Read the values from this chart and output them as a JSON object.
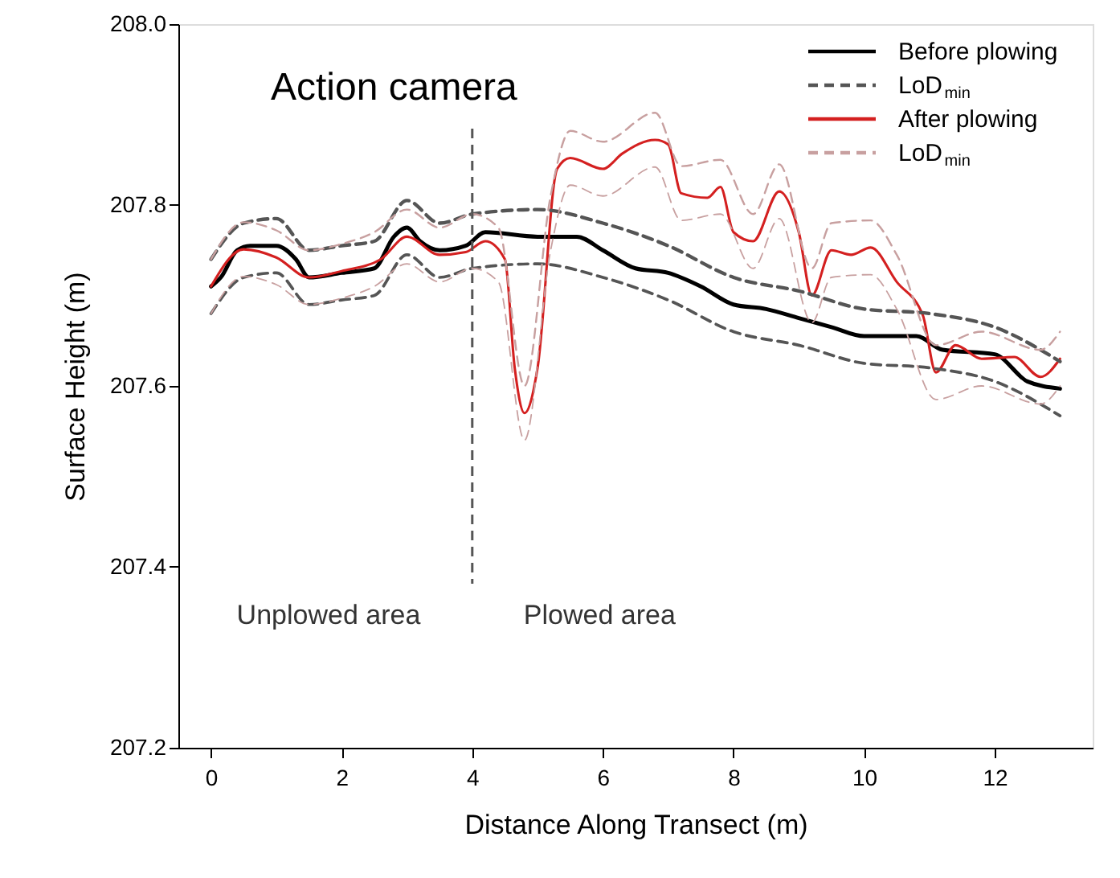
{
  "chart_data": {
    "type": "line",
    "xlabel": "Distance Along Transect (m)",
    "ylabel": "Surface Height (m)",
    "xlim": [
      -0.5,
      13.5
    ],
    "xticks": [
      0,
      2,
      4,
      6,
      8,
      10,
      12
    ],
    "ylim": [
      207.2,
      208.0
    ],
    "yticks": [
      {
        "value": 207.2,
        "label": "207.2"
      },
      {
        "value": 207.4,
        "label": "207.4"
      },
      {
        "value": 207.6,
        "label": "207.6"
      },
      {
        "value": 207.8,
        "label": "207.8"
      },
      {
        "value": 208.0,
        "label": "208.0"
      }
    ],
    "grid": false,
    "legend": "top right",
    "marker": "none",
    "series": [
      {
        "name": "Before plowing",
        "color": "#000000",
        "line_style": "solid",
        "x": [
          0,
          0.15,
          0.4,
          0.6,
          1.0,
          1.3,
          1.5,
          2.0,
          2.5,
          2.8,
          3.0,
          3.2,
          3.5,
          3.9,
          4.2,
          5.0,
          5.6,
          6.0,
          6.5,
          7.0,
          7.5,
          8.0,
          8.5,
          9.0,
          9.5,
          10.0,
          10.8,
          11.2,
          12.0,
          12.5,
          13.0
        ],
        "values": [
          207.71,
          207.72,
          207.75,
          207.755,
          207.755,
          207.74,
          207.72,
          207.725,
          207.73,
          207.765,
          207.775,
          207.76,
          207.75,
          207.755,
          207.77,
          207.765,
          207.765,
          207.75,
          207.73,
          207.725,
          207.71,
          207.69,
          207.685,
          207.675,
          207.665,
          207.655,
          207.655,
          207.64,
          207.635,
          207.605,
          207.597
        ]
      },
      {
        "name": "LoD$_{min}$",
        "color": "#555555",
        "line_style": "dashed",
        "x": [
          0,
          0.5,
          1,
          1.5,
          2,
          2.5,
          3,
          3.5,
          4,
          5,
          6,
          7,
          8,
          9,
          10,
          11,
          12,
          13
        ],
        "values": [
          207.74,
          207.78,
          207.785,
          207.75,
          207.755,
          207.76,
          207.805,
          207.78,
          207.79,
          207.795,
          207.78,
          207.755,
          207.72,
          207.705,
          207.685,
          207.68,
          207.665,
          207.627
        ]
      },
      {
        "color": "#555555",
        "line_style": "dashed",
        "x": [
          0,
          0.5,
          1,
          1.5,
          2,
          2.5,
          3,
          3.5,
          4,
          5,
          6,
          7,
          8,
          9,
          10,
          11,
          12,
          13
        ],
        "values": [
          207.68,
          207.72,
          207.725,
          207.69,
          207.695,
          207.7,
          207.745,
          207.72,
          207.73,
          207.735,
          207.72,
          207.695,
          207.66,
          207.645,
          207.625,
          207.62,
          207.605,
          207.567
        ]
      },
      {
        "name": "After plowing",
        "color": "#d42020",
        "line_style": "solid",
        "x": [
          0,
          0.5,
          1.0,
          1.5,
          2.0,
          2.6,
          3.0,
          3.5,
          3.9,
          4.2,
          4.5,
          4.65,
          4.8,
          5.0,
          5.3,
          5.5,
          6.0,
          6.3,
          6.8,
          7.0,
          7.2,
          7.6,
          7.8,
          8.0,
          8.3,
          8.7,
          9.0,
          9.2,
          9.5,
          9.8,
          10.1,
          10.5,
          10.9,
          11.1,
          11.4,
          11.8,
          12.3,
          12.7,
          13.0
        ],
        "values": [
          207.71,
          207.751,
          207.742,
          207.72,
          207.727,
          207.74,
          207.765,
          207.745,
          207.748,
          207.76,
          207.74,
          207.62,
          207.57,
          207.62,
          207.84,
          207.852,
          207.84,
          207.857,
          207.872,
          207.867,
          207.813,
          207.808,
          207.82,
          207.77,
          207.76,
          207.815,
          207.77,
          207.7,
          207.75,
          207.745,
          207.753,
          207.715,
          207.678,
          207.615,
          207.645,
          207.63,
          207.632,
          207.61,
          207.63
        ]
      },
      {
        "name": "LoD$_{min}$",
        "color": "#c8a0a0",
        "line_style": "dashed",
        "x": [
          0,
          0.5,
          1,
          1.5,
          2,
          2.5,
          3,
          3.5,
          4,
          4.4,
          4.8,
          5.2,
          5.5,
          6,
          6.8,
          7.2,
          7.8,
          8.3,
          8.7,
          9.2,
          9.5,
          10.1,
          10.5,
          11.1,
          11.8,
          12.7,
          13
        ],
        "values": [
          207.74,
          207.781,
          207.772,
          207.75,
          207.757,
          207.77,
          207.795,
          207.775,
          207.79,
          207.775,
          207.6,
          207.81,
          207.882,
          207.87,
          207.902,
          207.843,
          207.85,
          207.79,
          207.845,
          207.73,
          207.78,
          207.783,
          207.745,
          207.645,
          207.66,
          207.64,
          207.66
        ]
      },
      {
        "color": "#c8a0a0",
        "line_style": "dashed",
        "x": [
          0,
          0.5,
          1,
          1.5,
          2,
          2.5,
          3,
          3.5,
          4,
          4.4,
          4.8,
          5.2,
          5.5,
          6,
          6.8,
          7.2,
          7.8,
          8.3,
          8.7,
          9.2,
          9.5,
          10.1,
          10.5,
          11.1,
          11.8,
          12.7,
          13
        ],
        "values": [
          207.68,
          207.721,
          207.712,
          207.69,
          207.697,
          207.71,
          207.735,
          207.715,
          207.73,
          207.715,
          207.54,
          207.75,
          207.822,
          207.81,
          207.842,
          207.783,
          207.79,
          207.73,
          207.785,
          207.67,
          207.72,
          207.723,
          207.685,
          207.585,
          207.6,
          207.58,
          207.6
        ]
      }
    ],
    "ref_lines": [
      {
        "axis": "x",
        "value": 4,
        "label": "Action camera",
        "color": "#555555",
        "line_style": "dashed"
      }
    ],
    "annotations": [
      "Unplowed area",
      "Plowed area"
    ]
  }
}
